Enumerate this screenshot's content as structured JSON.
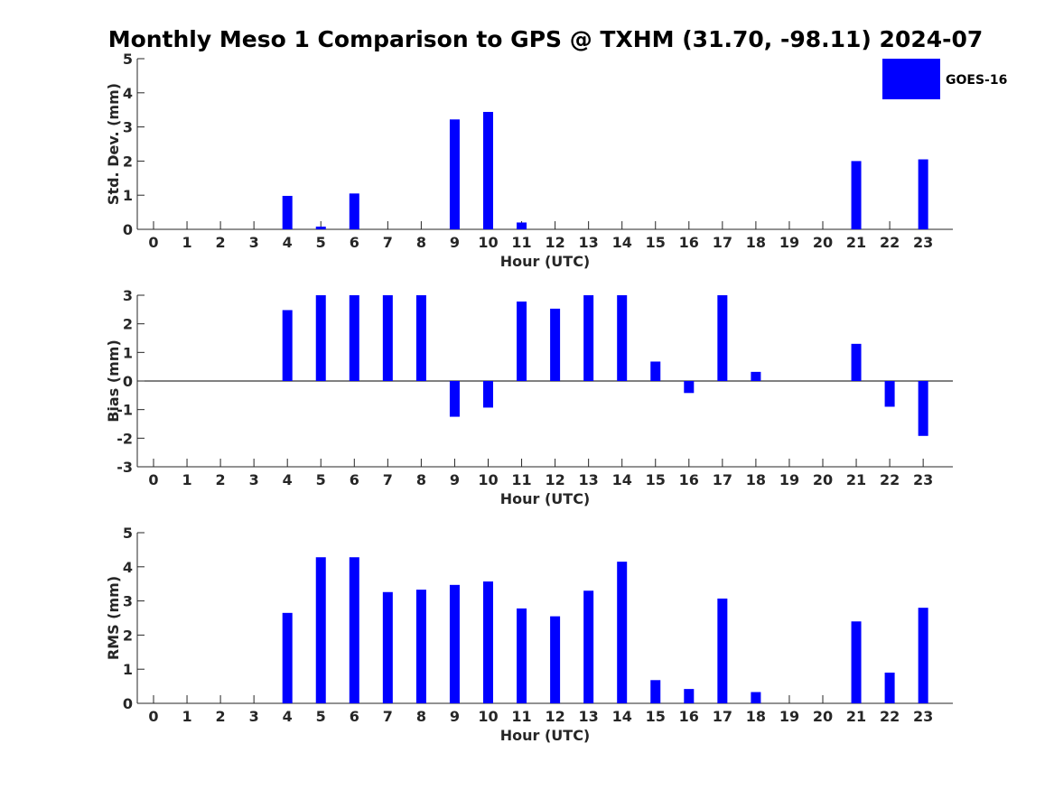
{
  "chart_data": {
    "type": "bar",
    "title": "Monthly Meso 1 Comparison to GPS @ TXHM (31.70, -98.11) 2024-07",
    "legend": {
      "placement": "top-right",
      "entries": [
        "GOES-16"
      ]
    },
    "series_color": "#0000ff",
    "categories": [
      "0",
      "1",
      "2",
      "3",
      "4",
      "5",
      "6",
      "7",
      "8",
      "9",
      "10",
      "11",
      "12",
      "13",
      "14",
      "15",
      "16",
      "17",
      "18",
      "19",
      "20",
      "21",
      "22",
      "23"
    ],
    "panels": [
      {
        "id": "std",
        "ylabel": "Std. Dev. (mm)",
        "xlabel": "Hour (UTC)",
        "ylim": [
          0,
          5
        ],
        "yticks": [
          "0",
          "1",
          "2",
          "3",
          "4",
          "5"
        ],
        "series": [
          {
            "name": "GOES-16",
            "values": [
              null,
              null,
              null,
              null,
              0.98,
              0.08,
              1.05,
              null,
              null,
              3.22,
              3.44,
              0.2,
              null,
              null,
              null,
              null,
              null,
              null,
              null,
              null,
              null,
              2.0,
              null,
              2.05
            ]
          }
        ]
      },
      {
        "id": "bias",
        "ylabel": "Bias (mm)",
        "xlabel": "Hour (UTC)",
        "ylim": [
          -3,
          3
        ],
        "yticks": [
          "-3",
          "-2",
          "-1",
          "0",
          "1",
          "2",
          "3"
        ],
        "series": [
          {
            "name": "GOES-16",
            "values": [
              null,
              null,
              null,
              null,
              2.48,
              3.0,
              3.0,
              3.0,
              3.0,
              -1.25,
              -0.93,
              2.78,
              2.53,
              3.0,
              3.0,
              0.68,
              -0.42,
              3.0,
              0.32,
              null,
              null,
              1.3,
              -0.9,
              -1.92
            ]
          }
        ]
      },
      {
        "id": "rms",
        "ylabel": "RMS (mm)",
        "xlabel": "Hour (UTC)",
        "ylim": [
          0,
          5
        ],
        "yticks": [
          "0",
          "1",
          "2",
          "3",
          "4",
          "5"
        ],
        "series": [
          {
            "name": "GOES-16",
            "values": [
              null,
              null,
              null,
              null,
              2.65,
              4.28,
              4.28,
              3.26,
              3.33,
              3.47,
              3.57,
              2.78,
              2.55,
              3.3,
              4.15,
              0.68,
              0.42,
              3.07,
              0.33,
              null,
              null,
              2.4,
              0.9,
              2.8
            ]
          }
        ]
      }
    ]
  }
}
